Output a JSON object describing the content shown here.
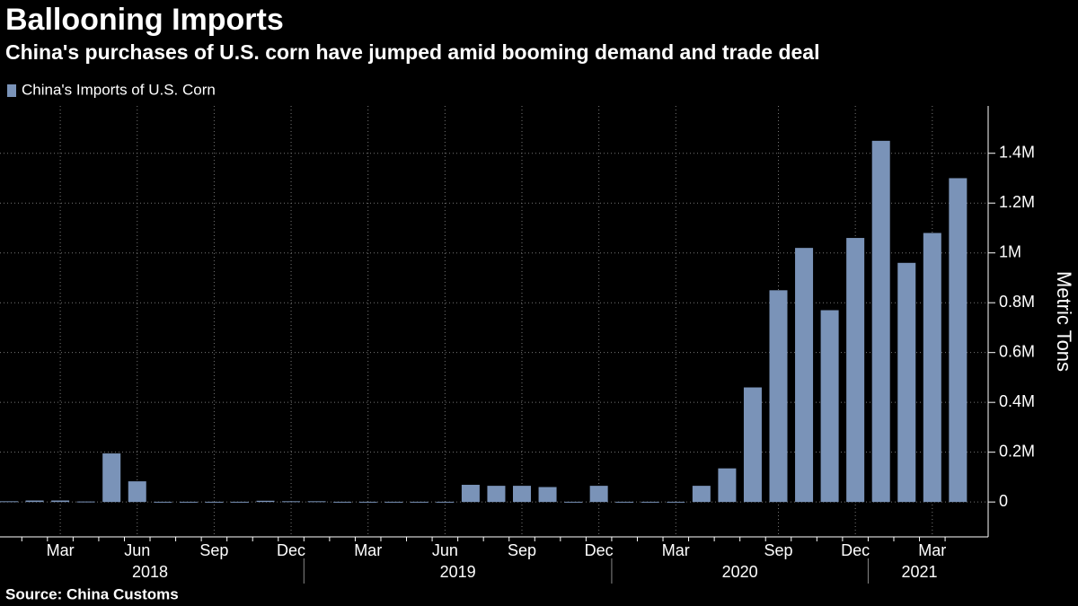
{
  "chart_data": {
    "type": "bar",
    "title": "Ballooning Imports",
    "subtitle": "China's purchases of U.S. corn have jumped amid booming demand and trade deal",
    "source": "Source: China Customs",
    "y_axis_label": "Metric Tons",
    "categories": [
      null,
      null,
      "Mar",
      null,
      null,
      "Jun",
      null,
      null,
      "Sep",
      null,
      null,
      "Dec",
      null,
      null,
      "Mar",
      null,
      null,
      "Jun",
      null,
      null,
      "Sep",
      null,
      null,
      "Dec",
      null,
      null,
      "Mar",
      null,
      null,
      null,
      "Sep",
      null,
      null,
      "Dec",
      null,
      null,
      "Mar",
      null
    ],
    "year_groups": [
      {
        "label": "2018",
        "first": 0,
        "last": 11
      },
      {
        "label": "2019",
        "first": 12,
        "last": 23
      },
      {
        "label": "2020",
        "first": 24,
        "last": 33
      },
      {
        "label": "2021",
        "first": 34,
        "last": 37
      }
    ],
    "series": [
      {
        "name": "China's Imports of U.S. Corn",
        "color": "#7a93b8",
        "values": [
          3000,
          6000,
          6000,
          2000,
          195000,
          83000,
          1000,
          1000,
          1000,
          1000,
          5000,
          3000,
          3000,
          1000,
          1000,
          1000,
          1000,
          1000,
          69000,
          65000,
          65000,
          60000,
          1000,
          65000,
          1000,
          1000,
          1000,
          65000,
          135000,
          460000,
          850000,
          1020000,
          770000,
          1060000,
          1450000,
          960000,
          1080000,
          1300000
        ]
      }
    ],
    "ylim": [
      -140000,
      1590000
    ],
    "yticks": [
      {
        "value": 0,
        "label": "0"
      },
      {
        "value": 200000,
        "label": "0.2M"
      },
      {
        "value": 400000,
        "label": "0.4M"
      },
      {
        "value": 600000,
        "label": "0.6M"
      },
      {
        "value": 800000,
        "label": "0.8M"
      },
      {
        "value": 1000000,
        "label": "1M"
      },
      {
        "value": 1200000,
        "label": "1.2M"
      },
      {
        "value": 1400000,
        "label": "1.4M"
      }
    ],
    "grid": true
  }
}
